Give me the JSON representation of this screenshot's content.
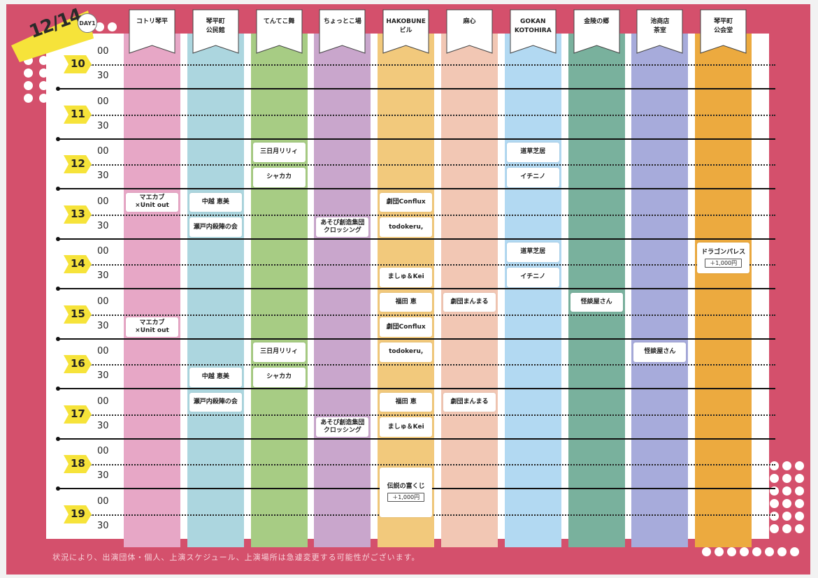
{
  "date": {
    "main": "12/14",
    "day": "DAY1"
  },
  "venues": [
    {
      "name": "コトリ琴平",
      "color": "#e7a7c6"
    },
    {
      "name": "琴平町\n公民館",
      "color": "#acd6df"
    },
    {
      "name": "てんてこ舞",
      "color": "#a7cc84"
    },
    {
      "name": "ちょっとこ場",
      "color": "#c9a6cc"
    },
    {
      "name": "HAKOBUNE\nビル",
      "color": "#f2c97c"
    },
    {
      "name": "麻心",
      "color": "#f2c7b4"
    },
    {
      "name": "GOKAN\nKOTOHIRA",
      "color": "#b2d9f2"
    },
    {
      "name": "金陵の郷",
      "color": "#79b19d"
    },
    {
      "name": "池商店\n茶室",
      "color": "#a7abdb"
    },
    {
      "name": "琴平町\n公会堂",
      "color": "#ecaa3f"
    }
  ],
  "hours": [
    "10",
    "11",
    "12",
    "13",
    "14",
    "15",
    "16",
    "17",
    "18",
    "19"
  ],
  "minutes": [
    "00",
    "30"
  ],
  "events": [
    {
      "col": 0,
      "start": "13:00",
      "slots": 1,
      "label": "マエカブ\n×Unit out"
    },
    {
      "col": 0,
      "start": "15:30",
      "slots": 1,
      "label": "マエカブ\n×Unit out"
    },
    {
      "col": 1,
      "start": "13:00",
      "slots": 1,
      "label": "中越 恵美"
    },
    {
      "col": 1,
      "start": "13:30",
      "slots": 1,
      "label": "瀬戸内殺陣の会"
    },
    {
      "col": 1,
      "start": "16:30",
      "slots": 1,
      "label": "中越 恵美"
    },
    {
      "col": 1,
      "start": "17:00",
      "slots": 1,
      "label": "瀬戸内殺陣の会"
    },
    {
      "col": 2,
      "start": "12:00",
      "slots": 1,
      "label": "三日月リリィ"
    },
    {
      "col": 2,
      "start": "12:30",
      "slots": 1,
      "label": "シャカカ"
    },
    {
      "col": 2,
      "start": "16:00",
      "slots": 1,
      "label": "三日月リリィ"
    },
    {
      "col": 2,
      "start": "16:30",
      "slots": 1,
      "label": "シャカカ"
    },
    {
      "col": 3,
      "start": "13:30",
      "slots": 1,
      "label": "あそび創造集団\nクロッシング"
    },
    {
      "col": 3,
      "start": "17:30",
      "slots": 1,
      "label": "あそび創造集団\nクロッシング"
    },
    {
      "col": 4,
      "start": "13:00",
      "slots": 1,
      "label": "劇団Conflux"
    },
    {
      "col": 4,
      "start": "13:30",
      "slots": 1,
      "label": "todokeru,"
    },
    {
      "col": 4,
      "start": "14:30",
      "slots": 1,
      "label": "ましゅ＆Kei"
    },
    {
      "col": 4,
      "start": "15:00",
      "slots": 1,
      "label": "福田 恵"
    },
    {
      "col": 4,
      "start": "15:30",
      "slots": 1,
      "label": "劇団Conflux"
    },
    {
      "col": 4,
      "start": "16:00",
      "slots": 1,
      "label": "todokeru,"
    },
    {
      "col": 4,
      "start": "17:00",
      "slots": 1,
      "label": "福田 恵"
    },
    {
      "col": 4,
      "start": "17:30",
      "slots": 1,
      "label": "ましゅ＆Kei"
    },
    {
      "col": 4,
      "start": "18:30",
      "slots": 2,
      "label": "伝説の富くじ",
      "price": "＋1,000円"
    },
    {
      "col": 5,
      "start": "15:00",
      "slots": 1,
      "label": "劇団まんまる"
    },
    {
      "col": 5,
      "start": "17:00",
      "slots": 1,
      "label": "劇団まんまる"
    },
    {
      "col": 6,
      "start": "12:00",
      "slots": 1,
      "label": "道草芝居"
    },
    {
      "col": 6,
      "start": "12:30",
      "slots": 1,
      "label": "イチニノ"
    },
    {
      "col": 6,
      "start": "14:00",
      "slots": 1,
      "label": "道草芝居"
    },
    {
      "col": 6,
      "start": "14:30",
      "slots": 1,
      "label": "イチニノ"
    },
    {
      "col": 7,
      "start": "15:00",
      "slots": 1,
      "label": "怪談屋さん"
    },
    {
      "col": 8,
      "start": "16:00",
      "slots": 1,
      "label": "怪談屋さん"
    },
    {
      "col": 9,
      "start": "14:00",
      "slots": 1,
      "label": "ドラゴンパレス",
      "price": "＋1,000円"
    }
  ],
  "footer": "状況により、出演団体・個人、上演スケジュール、上演場所は急遽変更する可能性がございます。"
}
